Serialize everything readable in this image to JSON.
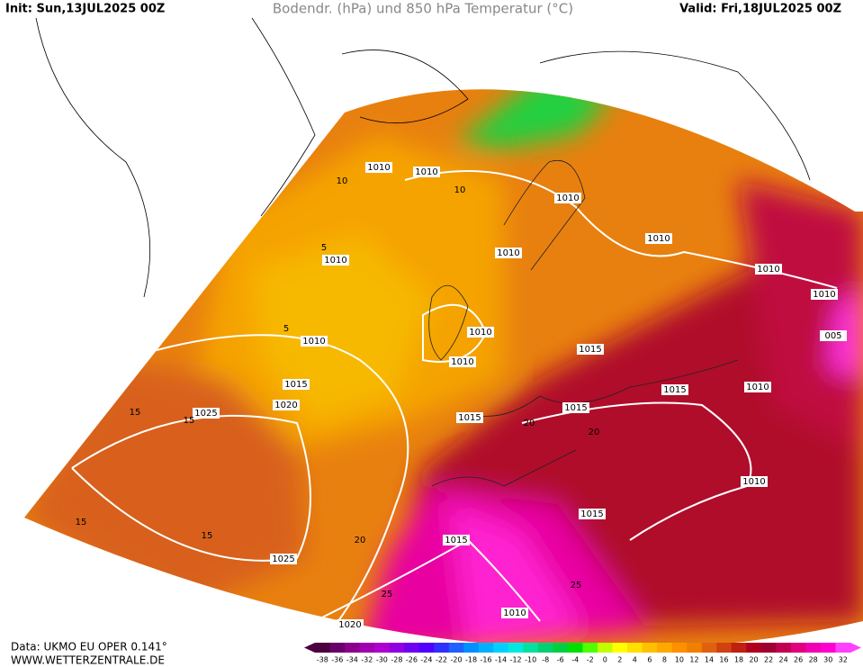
{
  "header": {
    "init": "Init: Sun,13JUL2025 00Z",
    "title": "Bodendr. (hPa) und 850 hPa Temperatur (°C)",
    "valid": "Valid: Fri,18JUL2025 00Z"
  },
  "footer": {
    "data": "Data: UKMO EU OPER 0.141°",
    "site": "WWW.WETTERZENTRALE.DE"
  },
  "isobar_labels": [
    "1010",
    "1010",
    "1010",
    "1010",
    "1010",
    "1010",
    "1010",
    "1010",
    "005",
    "1010",
    "1010",
    "1015",
    "1010",
    "1015",
    "1015",
    "1010",
    "1020",
    "1015",
    "1015",
    "1025",
    "1010",
    "1015",
    "1015",
    "1025",
    "1010",
    "1020"
  ],
  "temperature_labels": [
    "15",
    "15",
    "10",
    "10",
    "5",
    "5",
    "20",
    "20",
    "15",
    "15",
    "25",
    "25",
    "20"
  ],
  "legend": {
    "ticks": [
      -38,
      -36,
      -34,
      -32,
      -30,
      -28,
      -26,
      -24,
      -22,
      -20,
      -18,
      -16,
      -14,
      -12,
      -10,
      -8,
      -6,
      -4,
      -2,
      0,
      2,
      4,
      6,
      8,
      10,
      12,
      14,
      16,
      18,
      20,
      22,
      24,
      26,
      28,
      30,
      32
    ],
    "colors": [
      "#4b0040",
      "#6a006a",
      "#8a008a",
      "#a000b0",
      "#b000d0",
      "#9000e0",
      "#7000f0",
      "#5000ff",
      "#3030ff",
      "#2060ff",
      "#0090ff",
      "#00b0ff",
      "#00d0ff",
      "#00e8e0",
      "#00e0a0",
      "#00d070",
      "#00d040",
      "#00e000",
      "#50ff00",
      "#c0ff00",
      "#ffff00",
      "#ffe000",
      "#ffc000",
      "#ffa800",
      "#ff9000",
      "#f08000",
      "#e06010",
      "#d04010",
      "#c02010",
      "#b00020",
      "#a00030",
      "#c00050",
      "#e00080",
      "#f000b0",
      "#ff00d0",
      "#ff40ff"
    ]
  }
}
